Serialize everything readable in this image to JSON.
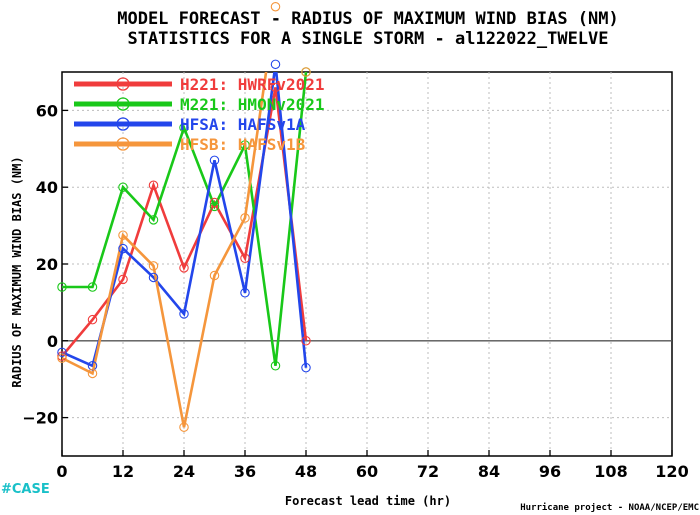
{
  "title_line1": "MODEL FORECAST - RADIUS OF MAXIMUM WIND BIAS (NM)",
  "title_line2": "STATISTICS FOR A SINGLE STORM - al122022_TWELVE",
  "credit": "Hurricane project - NOAA/NCEP/EMC",
  "logo_text": "#CASE",
  "chart_data": {
    "type": "line",
    "xlabel": "Forecast lead time (hr)",
    "ylabel": "RADIUS OF MAXIMUM WIND BIAS (NM)",
    "xlim": [
      0,
      120
    ],
    "ylim": [
      -30,
      70
    ],
    "xticks": [
      0,
      12,
      24,
      36,
      48,
      60,
      72,
      84,
      96,
      108,
      120
    ],
    "yticks": [
      -20,
      0,
      20,
      40,
      60
    ],
    "grid": true,
    "zero_line": true,
    "legend_placement": "top-left",
    "series": [
      {
        "name": "H221: HWRFv2021",
        "color": "#f03c3c",
        "x": [
          0,
          6,
          12,
          18,
          24,
          30,
          36,
          42,
          48
        ],
        "y": [
          -4,
          5.5,
          16,
          40.5,
          19,
          36,
          21.5,
          66,
          0
        ]
      },
      {
        "name": "M221: HMONv2021",
        "color": "#19c819",
        "x": [
          0,
          6,
          12,
          18,
          24,
          30,
          36,
          42,
          48
        ],
        "y": [
          14,
          14,
          40,
          31.5,
          55.5,
          35,
          51,
          -6.5,
          70
        ]
      },
      {
        "name": "HFSA: HAFSv1A",
        "color": "#2346eb",
        "x": [
          0,
          6,
          12,
          18,
          24,
          30,
          36,
          42,
          48
        ],
        "y": [
          -3,
          -6.5,
          24,
          16.5,
          7,
          47,
          12.5,
          72,
          -7
        ]
      },
      {
        "name": "HFSB: HAFSv1B",
        "color": "#f5963c",
        "x": [
          0,
          6,
          12,
          18,
          24,
          30,
          36,
          42,
          48
        ],
        "y": [
          -4.5,
          -8.5,
          27.5,
          19.5,
          -22.5,
          17,
          32,
          87,
          70
        ]
      }
    ]
  }
}
